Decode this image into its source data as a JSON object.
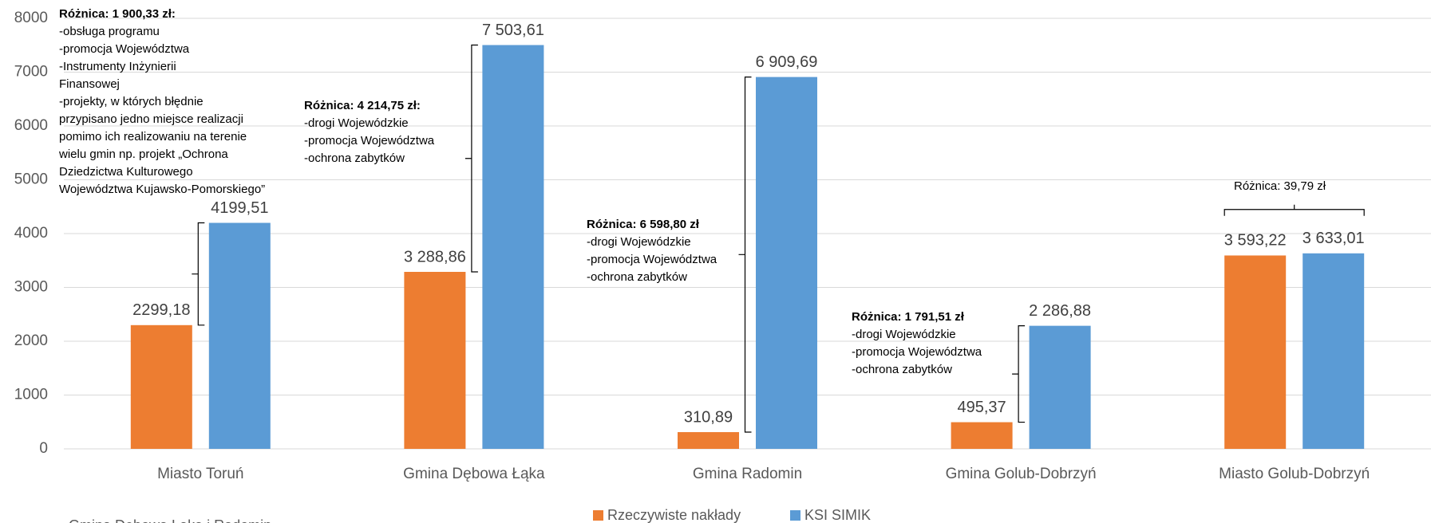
{
  "chart_data": {
    "type": "bar",
    "categories": [
      "Miasto Toruń",
      "Gmina Dębowa Łąka",
      "Gmina Radomin",
      "Gmina Golub-Dobrzyń",
      "Miasto Golub-Dobrzyń"
    ],
    "series": [
      {
        "name": "Rzeczywiste nakłady",
        "color": "#ed7d31",
        "values": [
          2299.18,
          3288.86,
          310.89,
          495.37,
          3593.22
        ],
        "value_labels": [
          "2299,18",
          "3 288,86",
          "310,89",
          "495,37",
          "3 593,22"
        ]
      },
      {
        "name": "KSI SIMIK",
        "color": "#5b9bd5",
        "values": [
          4199.51,
          7503.61,
          6909.69,
          2286.88,
          3633.01
        ],
        "value_labels": [
          "4199,51",
          "7 503,61",
          "6 909,69",
          "2 286,88",
          "3 633,01"
        ]
      }
    ],
    "ylim": [
      0,
      8000
    ],
    "yticks": [
      0,
      1000,
      2000,
      3000,
      4000,
      5000,
      6000,
      7000,
      8000
    ],
    "grid": true,
    "legend": "bottom",
    "annotations": [
      {
        "title": "Różnica: 1 900,33 zł:",
        "lines": [
          "-obsługa programu",
          "-promocja Województwa",
          "-Instrumenty Inżynierii",
          "Finansowej",
          "-projekty, w których błędnie",
          "przypisano jedno miejsce realizacji",
          "pomimo ich realizowaniu na terenie",
          "wielu gmin np. projekt „Ochrona",
          "Dziedzictwa Kulturowego",
          "Województwa Kujawsko-Pomorskiego”"
        ]
      },
      {
        "title": "Różnica: 4 214,75 zł:",
        "lines": [
          "-drogi Wojewódzkie",
          "-promocja Województwa",
          "-ochrona zabytków"
        ]
      },
      {
        "title": "Różnica: 6 598,80 zł",
        "lines": [
          "-drogi Wojewódzkie",
          "-promocja Województwa",
          "-ochrona zabytków"
        ]
      },
      {
        "title": "Różnica: 1 791,51 zł",
        "lines": [
          "-drogi Wojewódzkie",
          "-promocja Województwa",
          "-ochrona zabytków"
        ]
      },
      {
        "title": "Różnica: 39,79 zł",
        "lines": []
      }
    ],
    "footnote": "Gmina Dębowa Łąka i Radomin"
  }
}
